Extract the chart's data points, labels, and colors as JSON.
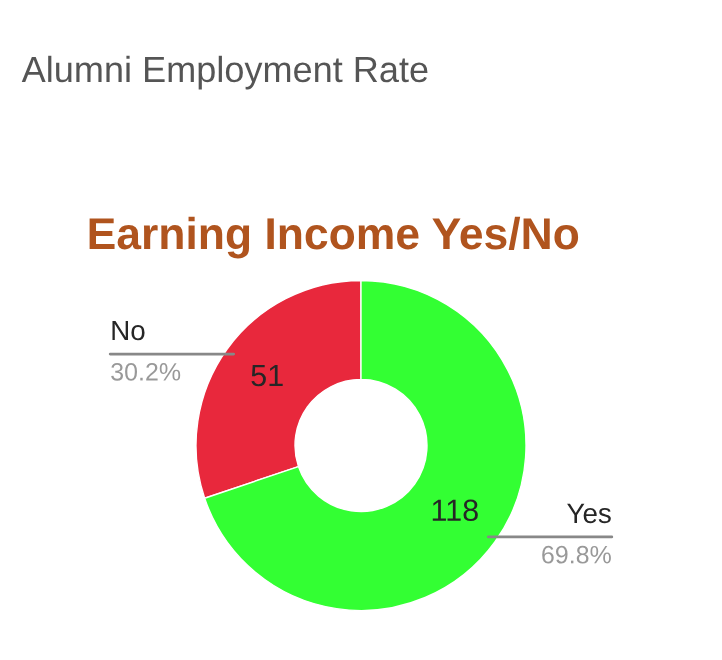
{
  "chart_data": {
    "type": "donut",
    "title": "Alumni Employment Rate",
    "subtitle": "Earning Income Yes/No",
    "categories": [
      "No",
      "Yes"
    ],
    "values": [
      51,
      118
    ],
    "colors": [
      "#e8283c",
      "#33ff33"
    ],
    "data_labels": true,
    "annotations": [
      "30.2%",
      "69.8%"
    ],
    "legend": false
  }
}
